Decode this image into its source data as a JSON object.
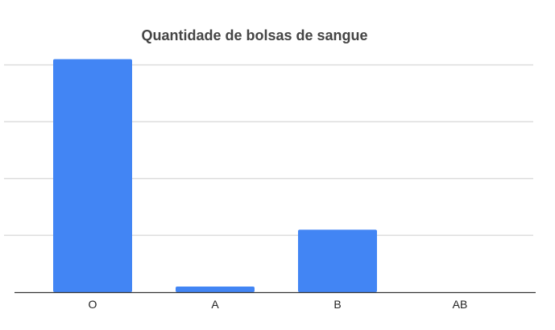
{
  "chart_data": {
    "type": "bar",
    "title": "Quantidade de bolsas de sangue",
    "categories": [
      "O",
      "A",
      "B",
      "AB"
    ],
    "values": [
      41,
      1,
      11,
      0
    ],
    "xlabel": "",
    "ylabel": "",
    "ylim": [
      0,
      50
    ],
    "grid": true,
    "bar_color": "#4285f4",
    "grid_color": "#dddddd",
    "axis_color": "#333333"
  }
}
